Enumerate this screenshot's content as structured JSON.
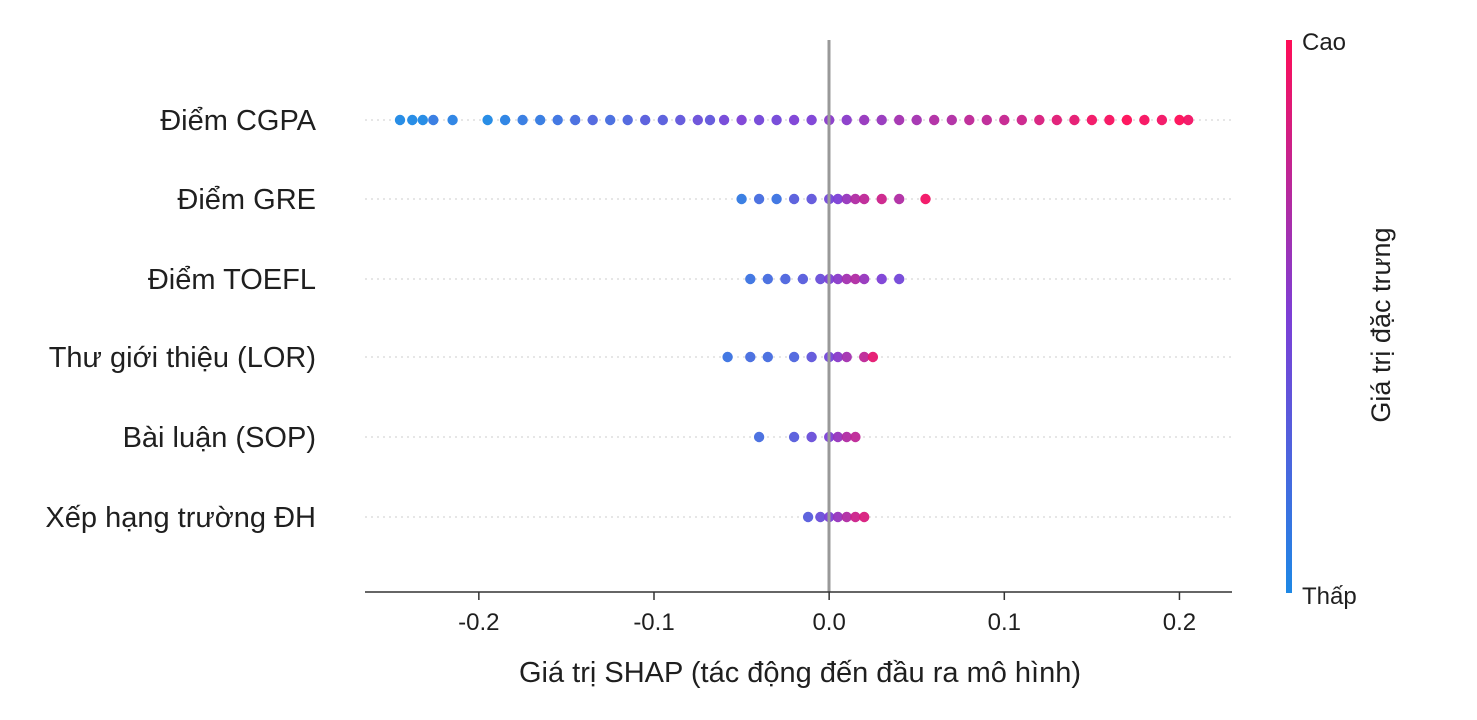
{
  "chart_data": {
    "type": "scatter",
    "subtype": "shap-beeswarm",
    "xlabel": "Giá trị SHAP (tác động đến đầu ra mô hình)",
    "xlim": [
      -0.265,
      0.23
    ],
    "x_ticks": [
      "-0.2",
      "-0.1",
      "0.0",
      "0.1",
      "0.2"
    ],
    "x_tick_values": [
      -0.2,
      -0.1,
      0.0,
      0.1,
      0.2
    ],
    "zero_line": 0.0,
    "grid": "horizontal dotted per feature row",
    "features": [
      {
        "name": "Điểm CGPA",
        "points": [
          [
            -0.245,
            0.0
          ],
          [
            -0.238,
            0.0
          ],
          [
            -0.232,
            0.0
          ],
          [
            -0.226,
            0.1
          ],
          [
            -0.215,
            0.05
          ],
          [
            -0.195,
            0.0
          ],
          [
            -0.185,
            0.05
          ],
          [
            -0.175,
            0.1
          ],
          [
            -0.165,
            0.1
          ],
          [
            -0.155,
            0.15
          ],
          [
            -0.145,
            0.2
          ],
          [
            -0.135,
            0.25
          ],
          [
            -0.125,
            0.2
          ],
          [
            -0.115,
            0.25
          ],
          [
            -0.105,
            0.3
          ],
          [
            -0.095,
            0.3
          ],
          [
            -0.085,
            0.35
          ],
          [
            -0.075,
            0.4
          ],
          [
            -0.068,
            0.35
          ],
          [
            -0.06,
            0.45
          ],
          [
            -0.05,
            0.5
          ],
          [
            -0.04,
            0.45
          ],
          [
            -0.03,
            0.45
          ],
          [
            -0.02,
            0.5
          ],
          [
            -0.01,
            0.5
          ],
          [
            0.0,
            0.55
          ],
          [
            0.01,
            0.55
          ],
          [
            0.02,
            0.6
          ],
          [
            0.03,
            0.6
          ],
          [
            0.04,
            0.65
          ],
          [
            0.05,
            0.65
          ],
          [
            0.06,
            0.7
          ],
          [
            0.07,
            0.7
          ],
          [
            0.08,
            0.75
          ],
          [
            0.09,
            0.75
          ],
          [
            0.1,
            0.78
          ],
          [
            0.11,
            0.8
          ],
          [
            0.12,
            0.85
          ],
          [
            0.13,
            0.88
          ],
          [
            0.14,
            0.9
          ],
          [
            0.15,
            0.95
          ],
          [
            0.16,
            0.97
          ],
          [
            0.17,
            1.0
          ],
          [
            0.18,
            0.97
          ],
          [
            0.19,
            0.95
          ],
          [
            0.2,
            1.0
          ],
          [
            0.205,
            0.95
          ]
        ]
      },
      {
        "name": "Điểm GRE",
        "points": [
          [
            -0.05,
            0.1
          ],
          [
            -0.04,
            0.2
          ],
          [
            -0.03,
            0.15
          ],
          [
            -0.02,
            0.3
          ],
          [
            -0.01,
            0.35
          ],
          [
            0.0,
            0.45
          ],
          [
            0.005,
            0.5
          ],
          [
            0.01,
            0.6
          ],
          [
            0.015,
            0.7
          ],
          [
            0.02,
            0.75
          ],
          [
            0.03,
            0.8
          ],
          [
            0.04,
            0.7
          ],
          [
            0.055,
            0.95
          ]
        ]
      },
      {
        "name": "Điểm TOEFL",
        "points": [
          [
            -0.045,
            0.15
          ],
          [
            -0.035,
            0.2
          ],
          [
            -0.025,
            0.25
          ],
          [
            -0.015,
            0.3
          ],
          [
            -0.005,
            0.4
          ],
          [
            0.0,
            0.5
          ],
          [
            0.005,
            0.55
          ],
          [
            0.01,
            0.65
          ],
          [
            0.015,
            0.7
          ],
          [
            0.02,
            0.6
          ],
          [
            0.03,
            0.5
          ],
          [
            0.04,
            0.45
          ]
        ]
      },
      {
        "name": "Thư giới thiệu (LOR)",
        "points": [
          [
            -0.058,
            0.15
          ],
          [
            -0.045,
            0.2
          ],
          [
            -0.035,
            0.2
          ],
          [
            -0.02,
            0.25
          ],
          [
            -0.01,
            0.35
          ],
          [
            0.0,
            0.45
          ],
          [
            0.005,
            0.55
          ],
          [
            0.01,
            0.65
          ],
          [
            0.02,
            0.75
          ],
          [
            0.025,
            0.9
          ]
        ]
      },
      {
        "name": "Bài luận (SOP)",
        "points": [
          [
            -0.04,
            0.2
          ],
          [
            -0.02,
            0.3
          ],
          [
            -0.01,
            0.4
          ],
          [
            0.0,
            0.5
          ],
          [
            0.005,
            0.6
          ],
          [
            0.01,
            0.7
          ],
          [
            0.015,
            0.75
          ]
        ]
      },
      {
        "name": "Xếp hạng trường ĐH",
        "points": [
          [
            -0.012,
            0.3
          ],
          [
            -0.005,
            0.4
          ],
          [
            0.0,
            0.5
          ],
          [
            0.005,
            0.6
          ],
          [
            0.01,
            0.7
          ],
          [
            0.015,
            0.8
          ],
          [
            0.02,
            0.85
          ]
        ]
      }
    ],
    "colorbar": {
      "title": "Giá trị đặc trưng",
      "high_label": "Cao",
      "low_label": "Thấp",
      "low_color": "#1e88e5",
      "high_color": "#ff0d57"
    }
  }
}
